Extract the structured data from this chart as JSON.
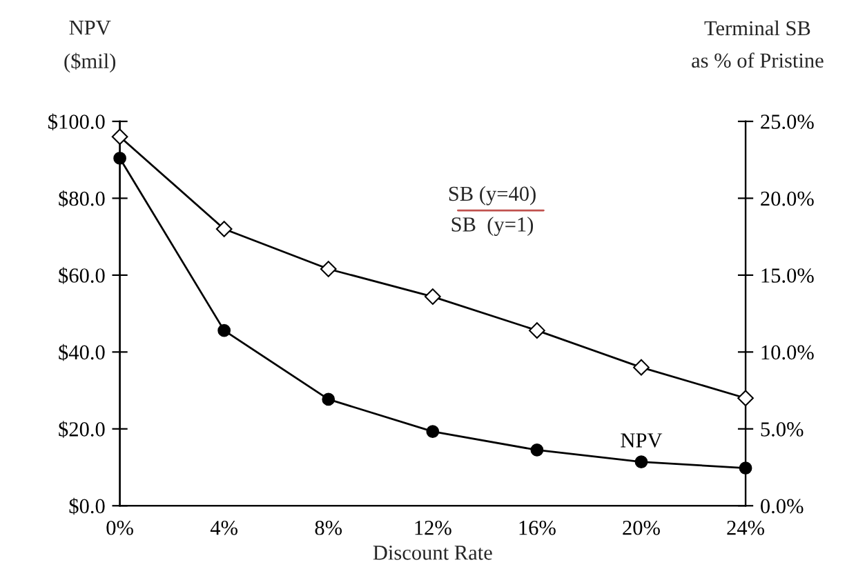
{
  "chart_data": {
    "type": "line",
    "xlabel": "Discount Rate",
    "ylabel": "NPV\n($mil)",
    "y2label": "Terminal SB\nas % of Pristine",
    "categories": [
      "0%",
      "4%",
      "8%",
      "12%",
      "16%",
      "20%",
      "24%"
    ],
    "series": [
      {
        "name": "NPV",
        "color": "#000000",
        "marker": "circle",
        "axis": "y",
        "values": [
          90.4,
          45.6,
          27.7,
          19.3,
          14.5,
          11.4,
          9.8
        ]
      },
      {
        "color": "#000000",
        "marker": "diamond",
        "axis": "y2",
        "values": [
          24.0,
          18.0,
          15.4,
          13.6,
          11.4,
          9.0,
          7.0
        ]
      }
    ],
    "annotations": [
      "SB (y=40)",
      "SB  (y=1)"
    ],
    "ylim": [
      0,
      100
    ],
    "yticks": [
      {
        "value": 0,
        "label": "$0.0"
      },
      {
        "value": 20,
        "label": "$20.0"
      },
      {
        "value": 40,
        "label": "$40.0"
      },
      {
        "value": 60,
        "label": "$60.0"
      },
      {
        "value": 80,
        "label": "$80.0"
      },
      {
        "value": 100,
        "label": "$100.0"
      }
    ],
    "y2lim": [
      0,
      25
    ],
    "y2ticks": [
      {
        "value": 0,
        "label": "0.0%"
      },
      {
        "value": 5,
        "label": "5.0%"
      },
      {
        "value": 10,
        "label": "10.0%"
      },
      {
        "value": 15,
        "label": "15.0%"
      },
      {
        "value": 20,
        "label": "20.0%"
      },
      {
        "value": 25,
        "label": "25.0%"
      }
    ],
    "grid": false,
    "legend": false
  }
}
